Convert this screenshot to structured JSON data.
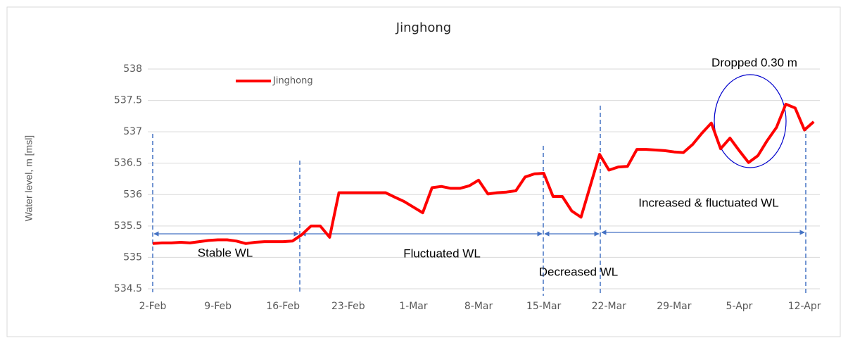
{
  "chart_data": {
    "type": "line",
    "title": "Jinghong",
    "y_label": "Water level, m [msl]",
    "categories": [
      "2-Feb",
      null,
      null,
      null,
      null,
      null,
      null,
      "9-Feb",
      null,
      null,
      null,
      null,
      null,
      null,
      "16-Feb",
      null,
      null,
      null,
      null,
      null,
      null,
      "23-Feb",
      null,
      null,
      null,
      null,
      null,
      null,
      "1-Mar",
      null,
      null,
      null,
      null,
      null,
      null,
      "8-Mar",
      null,
      null,
      null,
      null,
      null,
      null,
      "15-Mar",
      null,
      null,
      null,
      null,
      null,
      null,
      "22-Mar",
      null,
      null,
      null,
      null,
      null,
      null,
      "29-Mar",
      null,
      null,
      null,
      null,
      null,
      null,
      "5-Apr",
      null,
      null,
      null,
      null,
      null,
      null,
      "12-Apr",
      null
    ],
    "series": [
      {
        "name": "Jinghong",
        "color": "#ff0000",
        "values": [
          535.22,
          535.23,
          535.23,
          535.24,
          535.23,
          535.25,
          535.27,
          535.28,
          535.28,
          535.26,
          535.22,
          535.24,
          535.25,
          535.25,
          535.25,
          535.26,
          535.36,
          535.5,
          535.5,
          535.32,
          536.03,
          536.03,
          536.03,
          536.03,
          536.03,
          536.03,
          535.96,
          535.89,
          535.8,
          535.71,
          536.11,
          536.13,
          536.1,
          536.1,
          536.14,
          536.23,
          536.01,
          536.03,
          536.04,
          536.06,
          536.28,
          536.33,
          536.34,
          535.97,
          535.97,
          535.74,
          535.64,
          536.14,
          536.64,
          536.39,
          536.44,
          536.45,
          536.72,
          536.72,
          536.71,
          536.7,
          536.68,
          536.67,
          536.8,
          536.98,
          537.14,
          536.73,
          536.9,
          536.7,
          536.51,
          536.62,
          536.86,
          537.07,
          537.44,
          537.38,
          537.03,
          537.16
        ]
      }
    ],
    "ylim": [
      534.5,
      538
    ],
    "yticks": [
      534.5,
      535,
      535.5,
      536,
      536.5,
      537,
      537.5,
      538
    ],
    "grid": true,
    "legend": "upper left",
    "annotations": [
      "Stable WL",
      "Fluctuated WL",
      "Decreased WL",
      "Increased & fluctuated WL",
      "Dropped 0.30 m"
    ]
  }
}
